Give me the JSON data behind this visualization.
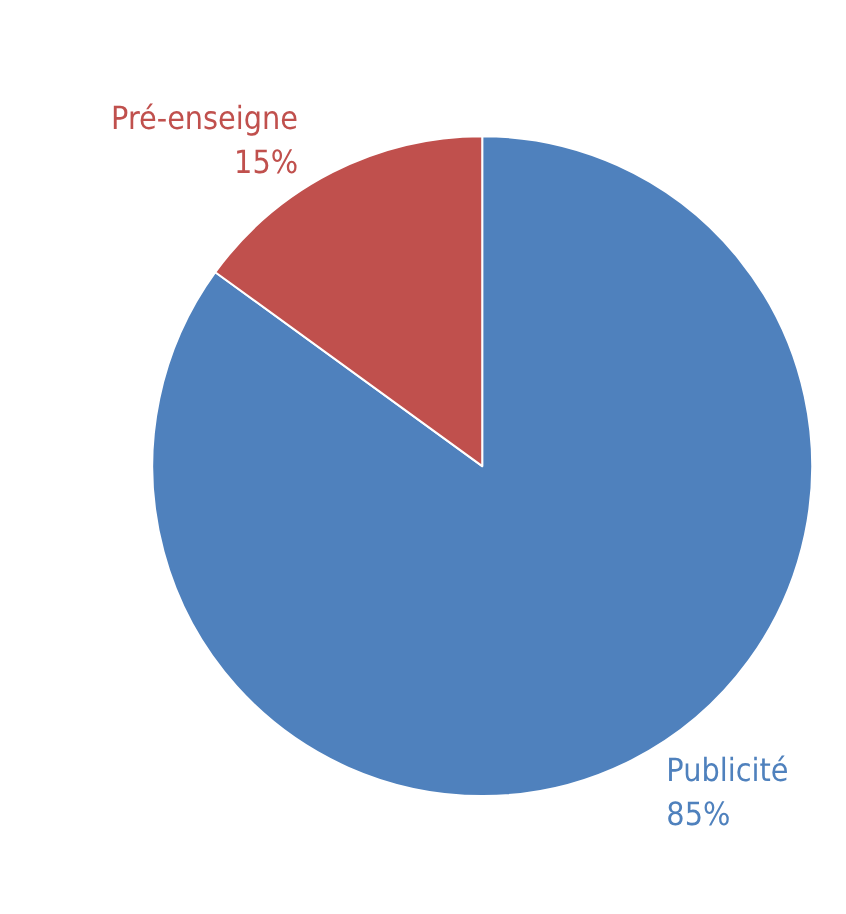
{
  "chart_data": {
    "type": "pie",
    "categories": [
      "Publicité",
      "Pré-enseigne"
    ],
    "values": [
      85,
      15
    ],
    "colors": [
      "#4f81bd",
      "#c0504d"
    ],
    "value_labels": [
      "85%",
      "15%"
    ],
    "legend": false
  }
}
